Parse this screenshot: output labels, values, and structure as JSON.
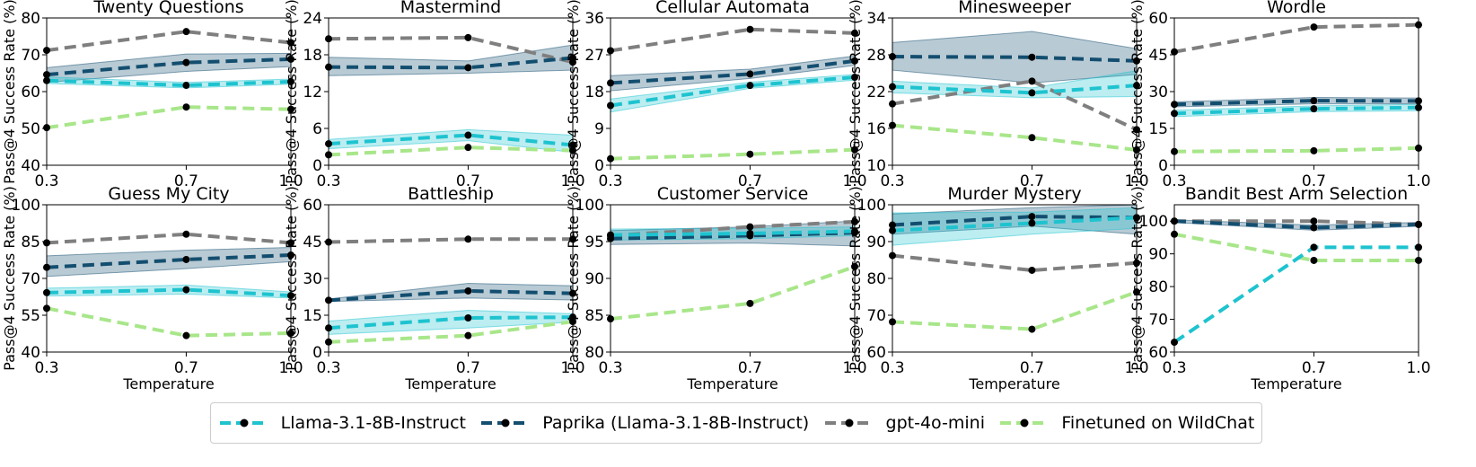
{
  "colors": {
    "Llama-3.1-8B-Instruct": "#1ec3cf",
    "Paprika (Llama-3.1-8B-Instruct)": "#134e6f",
    "gpt-4o-mini": "#7f7f7f",
    "Finetuned on WildChat": "#a8e68a"
  },
  "legend": {
    "items": [
      "Llama-3.1-8B-Instruct",
      "Paprika (Llama-3.1-8B-Instruct)",
      "gpt-4o-mini",
      "Finetuned on WildChat"
    ]
  },
  "chart_data": [
    {
      "type": "line",
      "title": "Twenty Questions",
      "xlabel": "",
      "ylabel": "Pass@4 Success Rate (%)",
      "x": [
        0.3,
        0.7,
        1.0
      ],
      "x_ticks": [
        "0.3",
        "0.7",
        "1.0"
      ],
      "ylim": [
        40,
        80
      ],
      "yticks": [
        40,
        50,
        60,
        70,
        80
      ],
      "series": [
        {
          "name": "gpt-4o-mini",
          "values": [
            71.2,
            76.3,
            73.3
          ]
        },
        {
          "name": "Paprika (Llama-3.1-8B-Instruct)",
          "values": [
            64.6,
            67.9,
            68.8
          ],
          "band": [
            [
              62.5,
              66.5
            ],
            [
              65.5,
              70.2
            ],
            [
              66.8,
              70.4
            ]
          ]
        },
        {
          "name": "Llama-3.1-8B-Instruct",
          "values": [
            63.0,
            61.7,
            62.7
          ],
          "band": [
            [
              62.2,
              64.0
            ],
            [
              61.0,
              62.5
            ],
            [
              62.0,
              63.4
            ]
          ]
        },
        {
          "name": "Finetuned on WildChat",
          "values": [
            50.2,
            55.8,
            55.2
          ]
        }
      ]
    },
    {
      "type": "line",
      "title": "Mastermind",
      "xlabel": "",
      "ylabel": "Pass@4 Success Rate (%)",
      "x": [
        0.3,
        0.7,
        1.0
      ],
      "x_ticks": [
        "0.3",
        "0.7",
        "1.0"
      ],
      "ylim": [
        0,
        24
      ],
      "yticks": [
        0,
        6,
        12,
        18,
        24
      ],
      "series": [
        {
          "name": "gpt-4o-mini",
          "values": [
            20.6,
            20.8,
            16.8
          ]
        },
        {
          "name": "Paprika (Llama-3.1-8B-Instruct)",
          "values": [
            16.0,
            15.9,
            17.5
          ],
          "band": [
            [
              14.6,
              17.6
            ],
            [
              15.0,
              17.0
            ],
            [
              15.5,
              19.6
            ]
          ]
        },
        {
          "name": "Llama-3.1-8B-Instruct",
          "values": [
            3.5,
            4.9,
            3.3
          ],
          "band": [
            [
              2.7,
              4.2
            ],
            [
              4.0,
              5.8
            ],
            [
              2.1,
              4.9
            ]
          ]
        },
        {
          "name": "Finetuned on WildChat",
          "values": [
            1.7,
            2.9,
            2.4
          ]
        }
      ]
    },
    {
      "type": "line",
      "title": "Cellular Automata",
      "xlabel": "",
      "ylabel": "Pass@4 Success Rate (%)",
      "x": [
        0.3,
        0.7,
        1.0
      ],
      "x_ticks": [
        "0.3",
        "0.7",
        "1.0"
      ],
      "ylim": [
        0,
        36
      ],
      "yticks": [
        0,
        9,
        18,
        27,
        36
      ],
      "series": [
        {
          "name": "gpt-4o-mini",
          "values": [
            28.0,
            33.2,
            32.3
          ]
        },
        {
          "name": "Paprika (Llama-3.1-8B-Instruct)",
          "values": [
            20.1,
            22.3,
            25.5
          ],
          "band": [
            [
              18.2,
              21.9
            ],
            [
              21.2,
              23.5
            ],
            [
              24.4,
              26.7
            ]
          ]
        },
        {
          "name": "Llama-3.1-8B-Instruct",
          "values": [
            14.6,
            19.5,
            21.5
          ],
          "band": [
            [
              13.0,
              16.2
            ],
            [
              18.8,
              20.3
            ],
            [
              20.8,
              22.2
            ]
          ]
        },
        {
          "name": "Finetuned on WildChat",
          "values": [
            1.6,
            2.7,
            3.8
          ]
        }
      ]
    },
    {
      "type": "line",
      "title": "Minesweeper",
      "xlabel": "",
      "ylabel": "Pass@4 Success Rate (%)",
      "x": [
        0.3,
        0.7,
        1.0
      ],
      "x_ticks": [
        "0.3",
        "0.7",
        "1.0"
      ],
      "ylim": [
        10,
        34
      ],
      "yticks": [
        10,
        16,
        22,
        28,
        34
      ],
      "series": [
        {
          "name": "Paprika (Llama-3.1-8B-Instruct)",
          "values": [
            27.7,
            27.6,
            27.0
          ],
          "band": [
            [
              25.5,
              30.0
            ],
            [
              23.4,
              31.8
            ],
            [
              24.8,
              29.0
            ]
          ]
        },
        {
          "name": "gpt-4o-mini",
          "values": [
            20.0,
            23.7,
            15.8
          ]
        },
        {
          "name": "Llama-3.1-8B-Instruct",
          "values": [
            22.8,
            21.8,
            23.0
          ],
          "band": [
            [
              21.8,
              23.7
            ],
            [
              21.0,
              22.6
            ],
            [
              21.2,
              25.4
            ]
          ]
        },
        {
          "name": "Finetuned on WildChat",
          "values": [
            16.5,
            14.5,
            12.5
          ]
        }
      ]
    },
    {
      "type": "line",
      "title": "Wordle",
      "xlabel": "",
      "ylabel": "Pass@4 Success Rate (%)",
      "x": [
        0.3,
        0.7,
        1.0
      ],
      "x_ticks": [
        "0.3",
        "0.7",
        "1.0"
      ],
      "ylim": [
        0,
        60
      ],
      "yticks": [
        0,
        15,
        30,
        45,
        60
      ],
      "series": [
        {
          "name": "gpt-4o-mini",
          "values": [
            46.2,
            56.3,
            57.2
          ]
        },
        {
          "name": "Paprika (Llama-3.1-8B-Instruct)",
          "values": [
            24.8,
            26.3,
            26.2
          ],
          "band": [
            [
              23.8,
              25.8
            ],
            [
              25.0,
              27.6
            ],
            [
              25.0,
              27.4
            ]
          ]
        },
        {
          "name": "Llama-3.1-8B-Instruct",
          "values": [
            21.1,
            23.0,
            23.5
          ],
          "band": [
            [
              19.8,
              22.4
            ],
            [
              21.8,
              24.2
            ],
            [
              22.2,
              24.8
            ]
          ]
        },
        {
          "name": "Finetuned on WildChat",
          "values": [
            5.6,
            5.9,
            7.0
          ]
        }
      ]
    },
    {
      "type": "line",
      "title": "Guess My City",
      "xlabel": "Temperature",
      "ylabel": "Pass@4 Success Rate (%)",
      "x": [
        0.3,
        0.7,
        1.0
      ],
      "x_ticks": [
        "0.3",
        "0.7",
        "1.0"
      ],
      "ylim": [
        40,
        100
      ],
      "yticks": [
        40,
        55,
        70,
        85,
        100
      ],
      "series": [
        {
          "name": "gpt-4o-mini",
          "values": [
            84.5,
            88.0,
            84.5
          ]
        },
        {
          "name": "Paprika (Llama-3.1-8B-Instruct)",
          "values": [
            74.5,
            77.7,
            79.5
          ],
          "band": [
            [
              70.8,
              79.2
            ],
            [
              74.0,
              81.5
            ],
            [
              76.8,
              82.6
            ]
          ]
        },
        {
          "name": "Llama-3.1-8B-Instruct",
          "values": [
            64.2,
            65.4,
            63.0
          ],
          "band": [
            [
              62.8,
              66.0
            ],
            [
              63.6,
              67.3
            ],
            [
              62.0,
              64.5
            ]
          ]
        },
        {
          "name": "Finetuned on WildChat",
          "values": [
            57.8,
            46.7,
            47.7
          ]
        }
      ]
    },
    {
      "type": "line",
      "title": "Battleship",
      "xlabel": "Temperature",
      "ylabel": "Pass@4 Success Rate (%)",
      "x": [
        0.3,
        0.7,
        1.0
      ],
      "x_ticks": [
        "0.3",
        "0.7",
        "1.0"
      ],
      "ylim": [
        0,
        60
      ],
      "yticks": [
        0,
        15,
        30,
        45,
        60
      ],
      "series": [
        {
          "name": "gpt-4o-mini",
          "values": [
            44.8,
            46.0,
            46.0
          ]
        },
        {
          "name": "Paprika (Llama-3.1-8B-Instruct)",
          "values": [
            21.1,
            24.9,
            23.9
          ],
          "band": [
            [
              20.6,
              21.6
            ],
            [
              22.0,
              28.0
            ],
            [
              21.2,
              27.0
            ]
          ]
        },
        {
          "name": "Llama-3.1-8B-Instruct",
          "values": [
            9.8,
            13.9,
            14.2
          ],
          "band": [
            [
              7.2,
              12.6
            ],
            [
              9.8,
              17.0
            ],
            [
              12.2,
              15.6
            ]
          ]
        },
        {
          "name": "Finetuned on WildChat",
          "values": [
            4.1,
            6.7,
            12.4
          ]
        }
      ]
    },
    {
      "type": "line",
      "title": "Customer Service",
      "xlabel": "Temperature",
      "ylabel": "Pass@4 Success Rate (%)",
      "x": [
        0.3,
        0.7,
        1.0
      ],
      "x_ticks": [
        "0.3",
        "0.7",
        "1.0"
      ],
      "ylim": [
        80,
        100
      ],
      "yticks": [
        80,
        85,
        90,
        95,
        100
      ],
      "series": [
        {
          "name": "gpt-4o-mini",
          "values": [
            95.8,
            97.0,
            97.7
          ]
        },
        {
          "name": "Paprika (Llama-3.1-8B-Instruct)",
          "values": [
            95.4,
            95.8,
            96.2
          ],
          "band": [
            [
              94.6,
              96.5
            ],
            [
              94.8,
              97.0
            ],
            [
              94.4,
              97.8
            ]
          ]
        },
        {
          "name": "Llama-3.1-8B-Instruct",
          "values": [
            95.9,
            96.1,
            96.4
          ],
          "band": [
            [
              95.2,
              96.7
            ],
            [
              95.4,
              96.8
            ],
            [
              95.8,
              97.0
            ]
          ]
        },
        {
          "name": "Finetuned on WildChat",
          "values": [
            84.5,
            86.6,
            91.6
          ]
        }
      ]
    },
    {
      "type": "line",
      "title": "Murder Mystery",
      "xlabel": "Temperature",
      "ylabel": "Pass@4 Success Rate (%)",
      "x": [
        0.3,
        0.7,
        1.0
      ],
      "x_ticks": [
        "0.3",
        "0.7",
        "1.0"
      ],
      "ylim": [
        60,
        100
      ],
      "yticks": [
        60,
        70,
        80,
        90,
        100
      ],
      "series": [
        {
          "name": "Paprika (Llama-3.1-8B-Instruct)",
          "values": [
            94.5,
            96.8,
            96.5
          ],
          "band": [
            [
              92.0,
              97.5
            ],
            [
              94.2,
              99.2
            ],
            [
              92.0,
              100.0
            ]
          ]
        },
        {
          "name": "Llama-3.1-8B-Instruct",
          "values": [
            93.0,
            95.0,
            96.5
          ],
          "band": [
            [
              89.0,
              97.8
            ],
            [
              92.0,
              98.0
            ],
            [
              93.6,
              99.2
            ]
          ]
        },
        {
          "name": "gpt-4o-mini",
          "values": [
            86.2,
            82.2,
            84.2
          ]
        },
        {
          "name": "Finetuned on WildChat",
          "values": [
            68.2,
            66.2,
            76.3
          ]
        }
      ]
    },
    {
      "type": "line",
      "title": "Bandit Best Arm Selection",
      "xlabel": "Temperature",
      "ylabel": "Pass@4 Success Rate (%)",
      "x": [
        0.3,
        0.7,
        1.0
      ],
      "x_ticks": [
        "0.3",
        "0.7",
        "1.0"
      ],
      "ylim": [
        60,
        105
      ],
      "yticks": [
        60,
        70,
        80,
        90,
        100
      ],
      "series": [
        {
          "name": "gpt-4o-mini",
          "values": [
            100.0,
            100.0,
            99.0
          ]
        },
        {
          "name": "Paprika (Llama-3.1-8B-Instruct)",
          "values": [
            100.0,
            98.0,
            99.0
          ],
          "band": [
            [
              99.6,
              100.4
            ],
            [
              97.2,
              98.8
            ],
            [
              98.4,
              99.6
            ]
          ]
        },
        {
          "name": "Finetuned on WildChat",
          "values": [
            96.0,
            88.0,
            88.0
          ]
        },
        {
          "name": "Llama-3.1-8B-Instruct",
          "values": [
            63.0,
            92.0,
            92.0
          ]
        }
      ]
    }
  ]
}
